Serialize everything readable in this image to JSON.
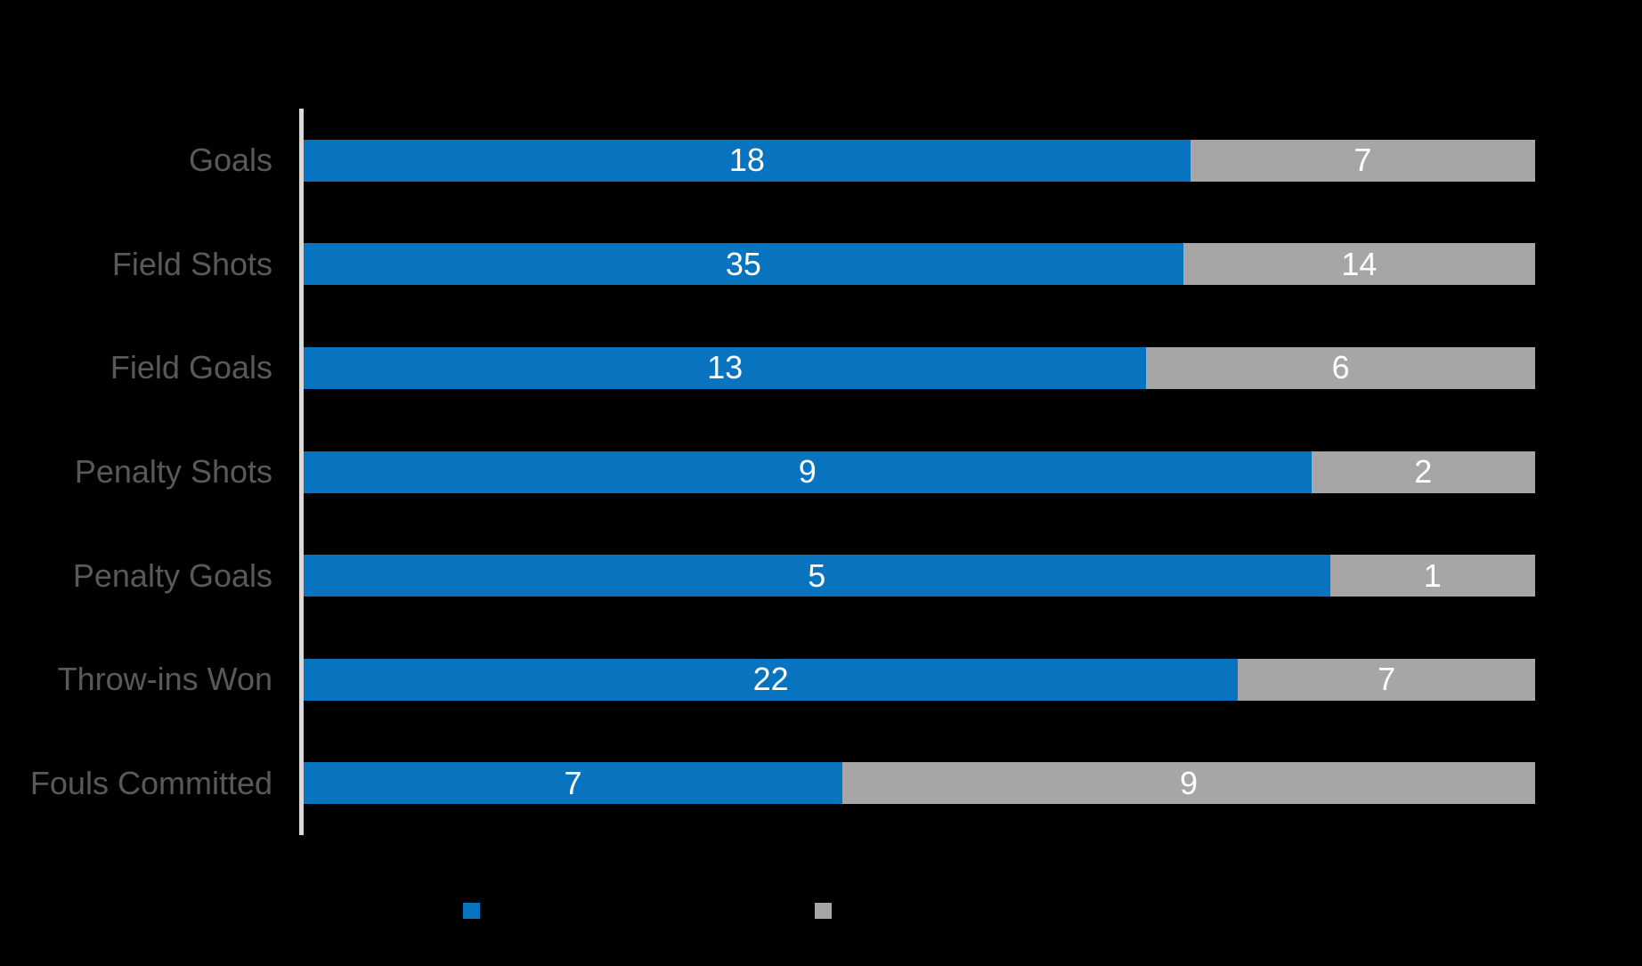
{
  "background": "#000000",
  "chart_data": {
    "type": "bar",
    "orientation": "horizontal",
    "stacking": "100%",
    "title": "",
    "categories": [
      "Goals",
      "Field Shots",
      "Field Goals",
      "Penalty Shots",
      "Penalty Goals",
      "Throw-ins Won",
      "Fouls Committed"
    ],
    "series": [
      {
        "name": "",
        "color": "#0873BE",
        "values": [
          18,
          35,
          13,
          9,
          5,
          22,
          7
        ]
      },
      {
        "name": "",
        "color": "#A6A6A6",
        "values": [
          7,
          14,
          6,
          2,
          1,
          7,
          9
        ]
      }
    ],
    "value_labels_position": "inside-center",
    "value_label_color": "#FFFFFF",
    "category_label_color": "#595959",
    "axis_line_color": "#D9D9D9",
    "grid": false,
    "legend_position": "bottom",
    "legend_labels_visible": false
  }
}
